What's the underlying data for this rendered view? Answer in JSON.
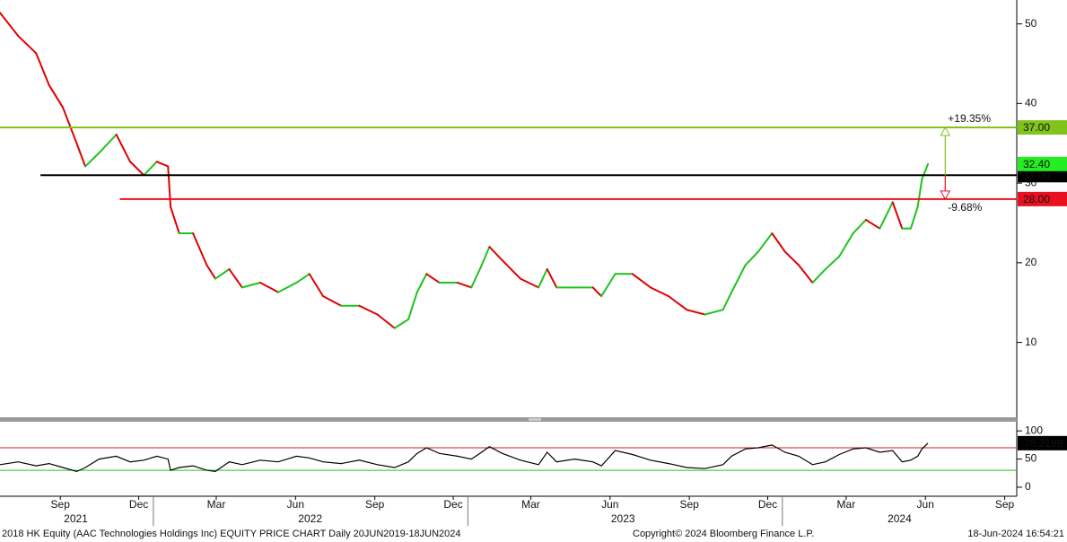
{
  "chart_data": {
    "type": "line",
    "xlim": [
      "2021-07-07",
      "2024-09-29"
    ],
    "x": [
      "2021-07-07",
      "2021-07-28",
      "2021-08-18",
      "2021-09-02",
      "2021-09-18",
      "2021-10-04",
      "2021-10-14",
      "2021-10-30",
      "2021-11-19",
      "2021-12-05",
      "2021-12-21",
      "2022-01-05",
      "2022-01-18",
      "2022-01-21",
      "2022-01-31",
      "2022-02-16",
      "2022-03-04",
      "2022-03-14",
      "2022-03-30",
      "2022-04-14",
      "2022-05-05",
      "2022-05-26",
      "2022-06-16",
      "2022-07-01",
      "2022-07-17",
      "2022-08-07",
      "2022-08-28",
      "2022-09-18",
      "2022-10-08",
      "2022-10-24",
      "2022-11-03",
      "2022-11-14",
      "2022-11-29",
      "2022-12-20",
      "2023-01-05",
      "2023-01-15",
      "2023-01-26",
      "2023-02-10",
      "2023-03-03",
      "2023-03-24",
      "2023-04-03",
      "2023-04-14",
      "2023-05-05",
      "2023-05-26",
      "2023-06-05",
      "2023-06-21",
      "2023-07-11",
      "2023-08-01",
      "2023-08-22",
      "2023-09-12",
      "2023-10-03",
      "2023-10-24",
      "2023-11-03",
      "2023-11-19",
      "2023-12-04",
      "2023-12-20",
      "2024-01-04",
      "2024-01-20",
      "2024-02-05",
      "2024-02-20",
      "2024-03-07",
      "2024-03-23",
      "2024-04-07",
      "2024-04-23",
      "2024-05-08",
      "2024-05-19",
      "2024-05-29",
      "2024-06-06",
      "2024-06-11",
      "2024-06-18"
    ],
    "xticks": [
      {
        "value": "2021-09-15",
        "label": "Sep"
      },
      {
        "value": "2021-12-15",
        "label": "Dec"
      },
      {
        "value": "2022-03-15",
        "label": "Mar"
      },
      {
        "value": "2022-06-15",
        "label": "Jun"
      },
      {
        "value": "2022-09-15",
        "label": "Sep"
      },
      {
        "value": "2022-12-15",
        "label": "Dec"
      },
      {
        "value": "2023-03-15",
        "label": "Mar"
      },
      {
        "value": "2023-06-15",
        "label": "Jun"
      },
      {
        "value": "2023-09-15",
        "label": "Sep"
      },
      {
        "value": "2023-12-15",
        "label": "Dec"
      },
      {
        "value": "2024-03-15",
        "label": "Mar"
      },
      {
        "value": "2024-06-15",
        "label": "Jun"
      },
      {
        "value": "2024-09-15",
        "label": "Sep"
      }
    ],
    "year_labels": [
      {
        "value": "2021-10-03",
        "label": "2021"
      },
      {
        "value": "2022-07-02",
        "label": "2022"
      },
      {
        "value": "2023-06-30",
        "label": "2023"
      },
      {
        "value": "2024-05-16",
        "label": "2024"
      }
    ],
    "year_ticks": [
      "2022-01-01",
      "2023-01-01",
      "2024-01-01"
    ],
    "price": {
      "ylim": [
        0.6,
        53
      ],
      "yticks": [
        10,
        20,
        30,
        40,
        50
      ],
      "up_color": "#1fc21f",
      "down_color": "#e00000",
      "last_value_label": "32.40",
      "last_color": "#22ee22",
      "values": [
        51.4,
        48.5,
        46.3,
        42.3,
        39.5,
        35,
        32.1,
        33.8,
        36.1,
        32.7,
        31,
        32.7,
        32.1,
        27,
        23.7,
        23.7,
        19.7,
        18,
        19.2,
        16.9,
        17.5,
        16.3,
        17.5,
        18.6,
        15.8,
        14.6,
        14.6,
        13.5,
        11.8,
        12.9,
        16.3,
        18.6,
        17.5,
        17.5,
        16.9,
        19.2,
        22,
        20.3,
        18,
        16.9,
        19.2,
        16.9,
        16.9,
        16.9,
        15.8,
        18.6,
        18.6,
        16.9,
        15.8,
        14.1,
        13.5,
        14.1,
        16.3,
        19.7,
        21.4,
        23.7,
        21.4,
        19.7,
        17.5,
        19.2,
        20.8,
        23.7,
        25.4,
        24.3,
        27.6,
        24.3,
        24.3,
        27,
        30.5,
        32.4
      ],
      "levels": [
        {
          "value": 37,
          "label": "37.00",
          "color": "#7fc31c",
          "text_color": "#000",
          "from": "2021-07-07"
        },
        {
          "value": 31,
          "label": "31.00",
          "color": "#000000",
          "text_color": "#fff",
          "from": "2021-08-23"
        },
        {
          "value": 28,
          "label": "28.00",
          "color": "#e8101e",
          "text_color": "#fff",
          "from": "2021-11-23"
        }
      ],
      "measure": {
        "date": "2024-07-08",
        "base": 31,
        "targets": [
          {
            "value": 37,
            "label": "+19.35%",
            "color": "#7fc31c"
          },
          {
            "value": 28,
            "label": "-9.68%",
            "color": "#e8101e"
          }
        ]
      }
    },
    "rsi": {
      "ylim": [
        -16,
        113
      ],
      "yticks": [
        0,
        50,
        100
      ],
      "color": "#000000",
      "levels": [
        {
          "value": 70,
          "color": "#d42020"
        },
        {
          "value": 30,
          "color": "#22c422"
        }
      ],
      "values": [
        40,
        45,
        38,
        42,
        35,
        28,
        35,
        50,
        55,
        45,
        48,
        55,
        50,
        30,
        35,
        38,
        30,
        28,
        45,
        40,
        48,
        45,
        55,
        52,
        45,
        42,
        48,
        40,
        35,
        45,
        60,
        70,
        60,
        55,
        50,
        60,
        72,
        60,
        48,
        40,
        62,
        45,
        50,
        45,
        38,
        65,
        58,
        48,
        42,
        35,
        33,
        40,
        55,
        68,
        70,
        75,
        62,
        55,
        40,
        45,
        58,
        68,
        70,
        62,
        65,
        45,
        48,
        55,
        68,
        78.2199
      ]
    },
    "footer": {
      "left": "2018 HK Equity (AAC Technologies Holdings Inc) EQUITY PRICE CHART  Daily 20JUN2019-18JUN2024",
      "center": "Copyright© 2024 Bloomberg Finance L.P.",
      "right": "18-Jun-2024 16:54:21"
    }
  }
}
